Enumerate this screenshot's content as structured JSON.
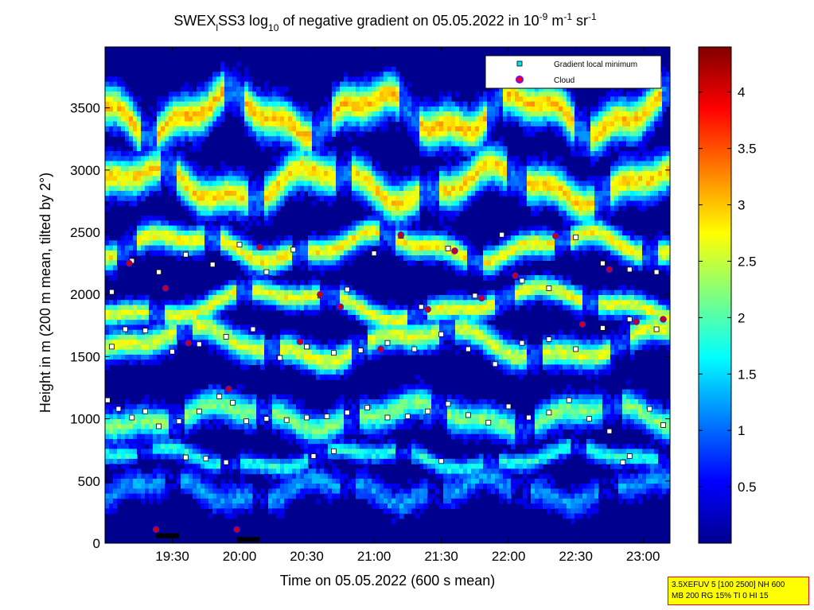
{
  "chart_data": {
    "type": "heatmap",
    "title": {
      "prefix": "SWEX",
      "sub_l": "l",
      "mid": "SS3 log",
      "sub_10": "10",
      "mid2": " of negative gradient on 05.05.2022 in 10",
      "sup1": "-9",
      "mid3": " m",
      "sup2": "-1",
      "mid4": " sr",
      "sup3": "-1"
    },
    "xlabel": "Time on 05.05.2022 (600 s mean)",
    "ylabel": "Height in m (200 m mean, tilted by 2°)",
    "x_range_hours": [
      19.0,
      23.2
    ],
    "x_ticks": [
      {
        "value": 19.5,
        "label": "19:30"
      },
      {
        "value": 20.0,
        "label": "20:00"
      },
      {
        "value": 20.5,
        "label": "20:30"
      },
      {
        "value": 21.0,
        "label": "21:00"
      },
      {
        "value": 21.5,
        "label": "21:30"
      },
      {
        "value": 22.0,
        "label": "22:00"
      },
      {
        "value": 22.5,
        "label": "22:30"
      },
      {
        "value": 23.0,
        "label": "23:00"
      }
    ],
    "ylim": [
      0,
      3990
    ],
    "y_ticks": [
      0,
      500,
      1000,
      1500,
      2000,
      2500,
      3000,
      3500
    ],
    "colorbar": {
      "range": [
        0,
        4.4
      ],
      "ticks": [
        {
          "value": 0.5,
          "label": "0.5"
        },
        {
          "value": 1.0,
          "label": "1"
        },
        {
          "value": 1.5,
          "label": "1.5"
        },
        {
          "value": 2.0,
          "label": "2"
        },
        {
          "value": 2.5,
          "label": "2.5"
        },
        {
          "value": 3.0,
          "label": "3"
        },
        {
          "value": 3.5,
          "label": "3.5"
        },
        {
          "value": 4.0,
          "label": "4"
        }
      ],
      "colormap": "jet"
    },
    "legend": {
      "placement": "top-right",
      "entries": [
        {
          "label": "Gradient local minimum",
          "marker": "square",
          "color": "#00e5ee"
        },
        {
          "label": "Cloud",
          "marker": "circle",
          "color": "#ff0000",
          "edge": "#8000ff"
        }
      ]
    },
    "layers": [
      {
        "name": "surface-noise",
        "h0": 420,
        "amp": 80,
        "period": 1.2,
        "phase": 0.3,
        "width": 110,
        "value": 1.2
      },
      {
        "name": "layer-650",
        "h0": 680,
        "amp": 70,
        "period": 1.6,
        "phase": 1.0,
        "width": 70,
        "value": 1.8
      },
      {
        "name": "layer-1000",
        "h0": 1020,
        "amp": 80,
        "period": 1.4,
        "phase": 0.2,
        "width": 120,
        "value": 2.2
      },
      {
        "name": "layer-1600",
        "h0": 1600,
        "amp": 110,
        "period": 1.8,
        "phase": 2.1,
        "width": 110,
        "value": 2.6
      },
      {
        "name": "layer-1900",
        "h0": 1920,
        "amp": 100,
        "period": 2.0,
        "phase": 0.7,
        "width": 90,
        "value": 2.7
      },
      {
        "name": "layer-2400",
        "h0": 2380,
        "amp": 90,
        "period": 1.5,
        "phase": 1.4,
        "width": 100,
        "value": 2.8
      },
      {
        "name": "layer-2900",
        "h0": 2880,
        "amp": 120,
        "period": 1.3,
        "phase": 2.5,
        "width": 150,
        "value": 2.9
      },
      {
        "name": "layer-3500",
        "h0": 3450,
        "amp": 140,
        "period": 1.1,
        "phase": 0.9,
        "width": 160,
        "value": 3.0
      }
    ],
    "gradient_minima": [
      {
        "x": 19.02,
        "y": 1150
      },
      {
        "x": 19.1,
        "y": 1080
      },
      {
        "x": 19.2,
        "y": 1010
      },
      {
        "x": 19.3,
        "y": 1060
      },
      {
        "x": 19.4,
        "y": 940
      },
      {
        "x": 19.55,
        "y": 980
      },
      {
        "x": 19.7,
        "y": 1060
      },
      {
        "x": 19.85,
        "y": 1180
      },
      {
        "x": 19.95,
        "y": 1130
      },
      {
        "x": 20.05,
        "y": 980
      },
      {
        "x": 20.2,
        "y": 1000
      },
      {
        "x": 20.35,
        "y": 990
      },
      {
        "x": 20.5,
        "y": 1010
      },
      {
        "x": 20.65,
        "y": 1020
      },
      {
        "x": 20.8,
        "y": 1050
      },
      {
        "x": 20.95,
        "y": 1090
      },
      {
        "x": 21.1,
        "y": 1010
      },
      {
        "x": 21.25,
        "y": 1020
      },
      {
        "x": 21.4,
        "y": 1060
      },
      {
        "x": 21.55,
        "y": 1120
      },
      {
        "x": 21.7,
        "y": 1030
      },
      {
        "x": 21.85,
        "y": 970
      },
      {
        "x": 22.0,
        "y": 1100
      },
      {
        "x": 22.15,
        "y": 1010
      },
      {
        "x": 22.3,
        "y": 1050
      },
      {
        "x": 22.45,
        "y": 1150
      },
      {
        "x": 22.6,
        "y": 1000
      },
      {
        "x": 22.75,
        "y": 900
      },
      {
        "x": 22.9,
        "y": 700
      },
      {
        "x": 23.05,
        "y": 1080
      },
      {
        "x": 23.15,
        "y": 950
      },
      {
        "x": 19.6,
        "y": 690
      },
      {
        "x": 19.75,
        "y": 680
      },
      {
        "x": 19.9,
        "y": 650
      },
      {
        "x": 20.55,
        "y": 700
      },
      {
        "x": 20.7,
        "y": 740
      },
      {
        "x": 21.5,
        "y": 660
      },
      {
        "x": 22.85,
        "y": 650
      },
      {
        "x": 19.05,
        "y": 1580
      },
      {
        "x": 19.15,
        "y": 1720
      },
      {
        "x": 19.3,
        "y": 1710
      },
      {
        "x": 19.5,
        "y": 1540
      },
      {
        "x": 19.7,
        "y": 1600
      },
      {
        "x": 19.9,
        "y": 1660
      },
      {
        "x": 20.1,
        "y": 1720
      },
      {
        "x": 20.3,
        "y": 1490
      },
      {
        "x": 20.5,
        "y": 1580
      },
      {
        "x": 20.7,
        "y": 1530
      },
      {
        "x": 20.9,
        "y": 1550
      },
      {
        "x": 21.1,
        "y": 1610
      },
      {
        "x": 21.3,
        "y": 1560
      },
      {
        "x": 21.5,
        "y": 1680
      },
      {
        "x": 21.7,
        "y": 1560
      },
      {
        "x": 21.9,
        "y": 1440
      },
      {
        "x": 22.1,
        "y": 1610
      },
      {
        "x": 22.3,
        "y": 1640
      },
      {
        "x": 22.5,
        "y": 1560
      },
      {
        "x": 22.7,
        "y": 1730
      },
      {
        "x": 22.9,
        "y": 1800
      },
      {
        "x": 23.1,
        "y": 1720
      },
      {
        "x": 19.05,
        "y": 2020
      },
      {
        "x": 19.2,
        "y": 2270
      },
      {
        "x": 19.4,
        "y": 2180
      },
      {
        "x": 19.6,
        "y": 2320
      },
      {
        "x": 19.8,
        "y": 2240
      },
      {
        "x": 20.0,
        "y": 2400
      },
      {
        "x": 20.2,
        "y": 2180
      },
      {
        "x": 20.4,
        "y": 2360
      },
      {
        "x": 20.6,
        "y": 1990
      },
      {
        "x": 20.8,
        "y": 2040
      },
      {
        "x": 21.0,
        "y": 2330
      },
      {
        "x": 21.2,
        "y": 2470
      },
      {
        "x": 21.35,
        "y": 1900
      },
      {
        "x": 21.55,
        "y": 2370
      },
      {
        "x": 21.75,
        "y": 1990
      },
      {
        "x": 21.95,
        "y": 2480
      },
      {
        "x": 22.1,
        "y": 2110
      },
      {
        "x": 22.3,
        "y": 2050
      },
      {
        "x": 22.5,
        "y": 2460
      },
      {
        "x": 22.7,
        "y": 2250
      },
      {
        "x": 22.9,
        "y": 2200
      },
      {
        "x": 23.1,
        "y": 2180
      }
    ],
    "clouds": [
      {
        "x": 19.18,
        "y": 2250
      },
      {
        "x": 19.45,
        "y": 2050
      },
      {
        "x": 19.62,
        "y": 1610
      },
      {
        "x": 19.92,
        "y": 1240
      },
      {
        "x": 20.15,
        "y": 2380
      },
      {
        "x": 20.45,
        "y": 1620
      },
      {
        "x": 20.6,
        "y": 2000
      },
      {
        "x": 20.75,
        "y": 1900
      },
      {
        "x": 21.05,
        "y": 1560
      },
      {
        "x": 21.2,
        "y": 2480
      },
      {
        "x": 21.4,
        "y": 1880
      },
      {
        "x": 21.6,
        "y": 2350
      },
      {
        "x": 21.8,
        "y": 1970
      },
      {
        "x": 22.05,
        "y": 2150
      },
      {
        "x": 22.35,
        "y": 2470
      },
      {
        "x": 22.55,
        "y": 1760
      },
      {
        "x": 22.75,
        "y": 2200
      },
      {
        "x": 22.95,
        "y": 1780
      },
      {
        "x": 23.15,
        "y": 1800
      },
      {
        "x": 19.38,
        "y": 110
      },
      {
        "x": 19.98,
        "y": 110
      }
    ],
    "ground_bars": [
      {
        "x0": 19.38,
        "x1": 19.55,
        "y": 60
      },
      {
        "x0": 19.98,
        "x1": 20.15,
        "y": 30
      }
    ]
  },
  "info_box": {
    "line1": "3.5XEFUV 5 [100 2500] NH 600",
    "line2": "MB 200 RG 15% TI 0 HI 15"
  }
}
